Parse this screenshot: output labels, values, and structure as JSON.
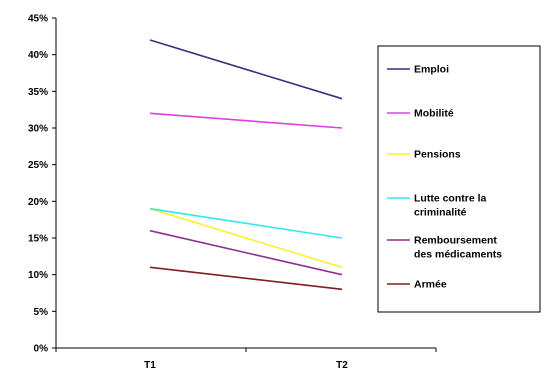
{
  "chart_data": {
    "type": "line",
    "categories": [
      "T1",
      "T2"
    ],
    "ylim": [
      0,
      45
    ],
    "ytick_labels": [
      "0%",
      "5%",
      "10%",
      "15%",
      "20%",
      "25%",
      "30%",
      "35%",
      "40%",
      "45%"
    ],
    "series": [
      {
        "name": "Emploi",
        "values": [
          42,
          34
        ],
        "color": "#33337f"
      },
      {
        "name": "Mobilité",
        "values": [
          32,
          30
        ],
        "color": "#e040e0"
      },
      {
        "name": "Pensions",
        "values": [
          19,
          11
        ],
        "color": "#ffee33"
      },
      {
        "name": "Lutte contre la criminalité",
        "legend_lines": [
          "Lutte contre la",
          "criminalité"
        ],
        "values": [
          19,
          15
        ],
        "color": "#33e6f0"
      },
      {
        "name": "Remboursement des médicaments",
        "legend_lines": [
          "Remboursement",
          "des médicaments"
        ],
        "values": [
          16,
          10
        ],
        "color": "#8f2f8f"
      },
      {
        "name": "Armée",
        "values": [
          11,
          8
        ],
        "color": "#7f1f1f"
      }
    ],
    "legend_position": "right",
    "grid": false
  }
}
